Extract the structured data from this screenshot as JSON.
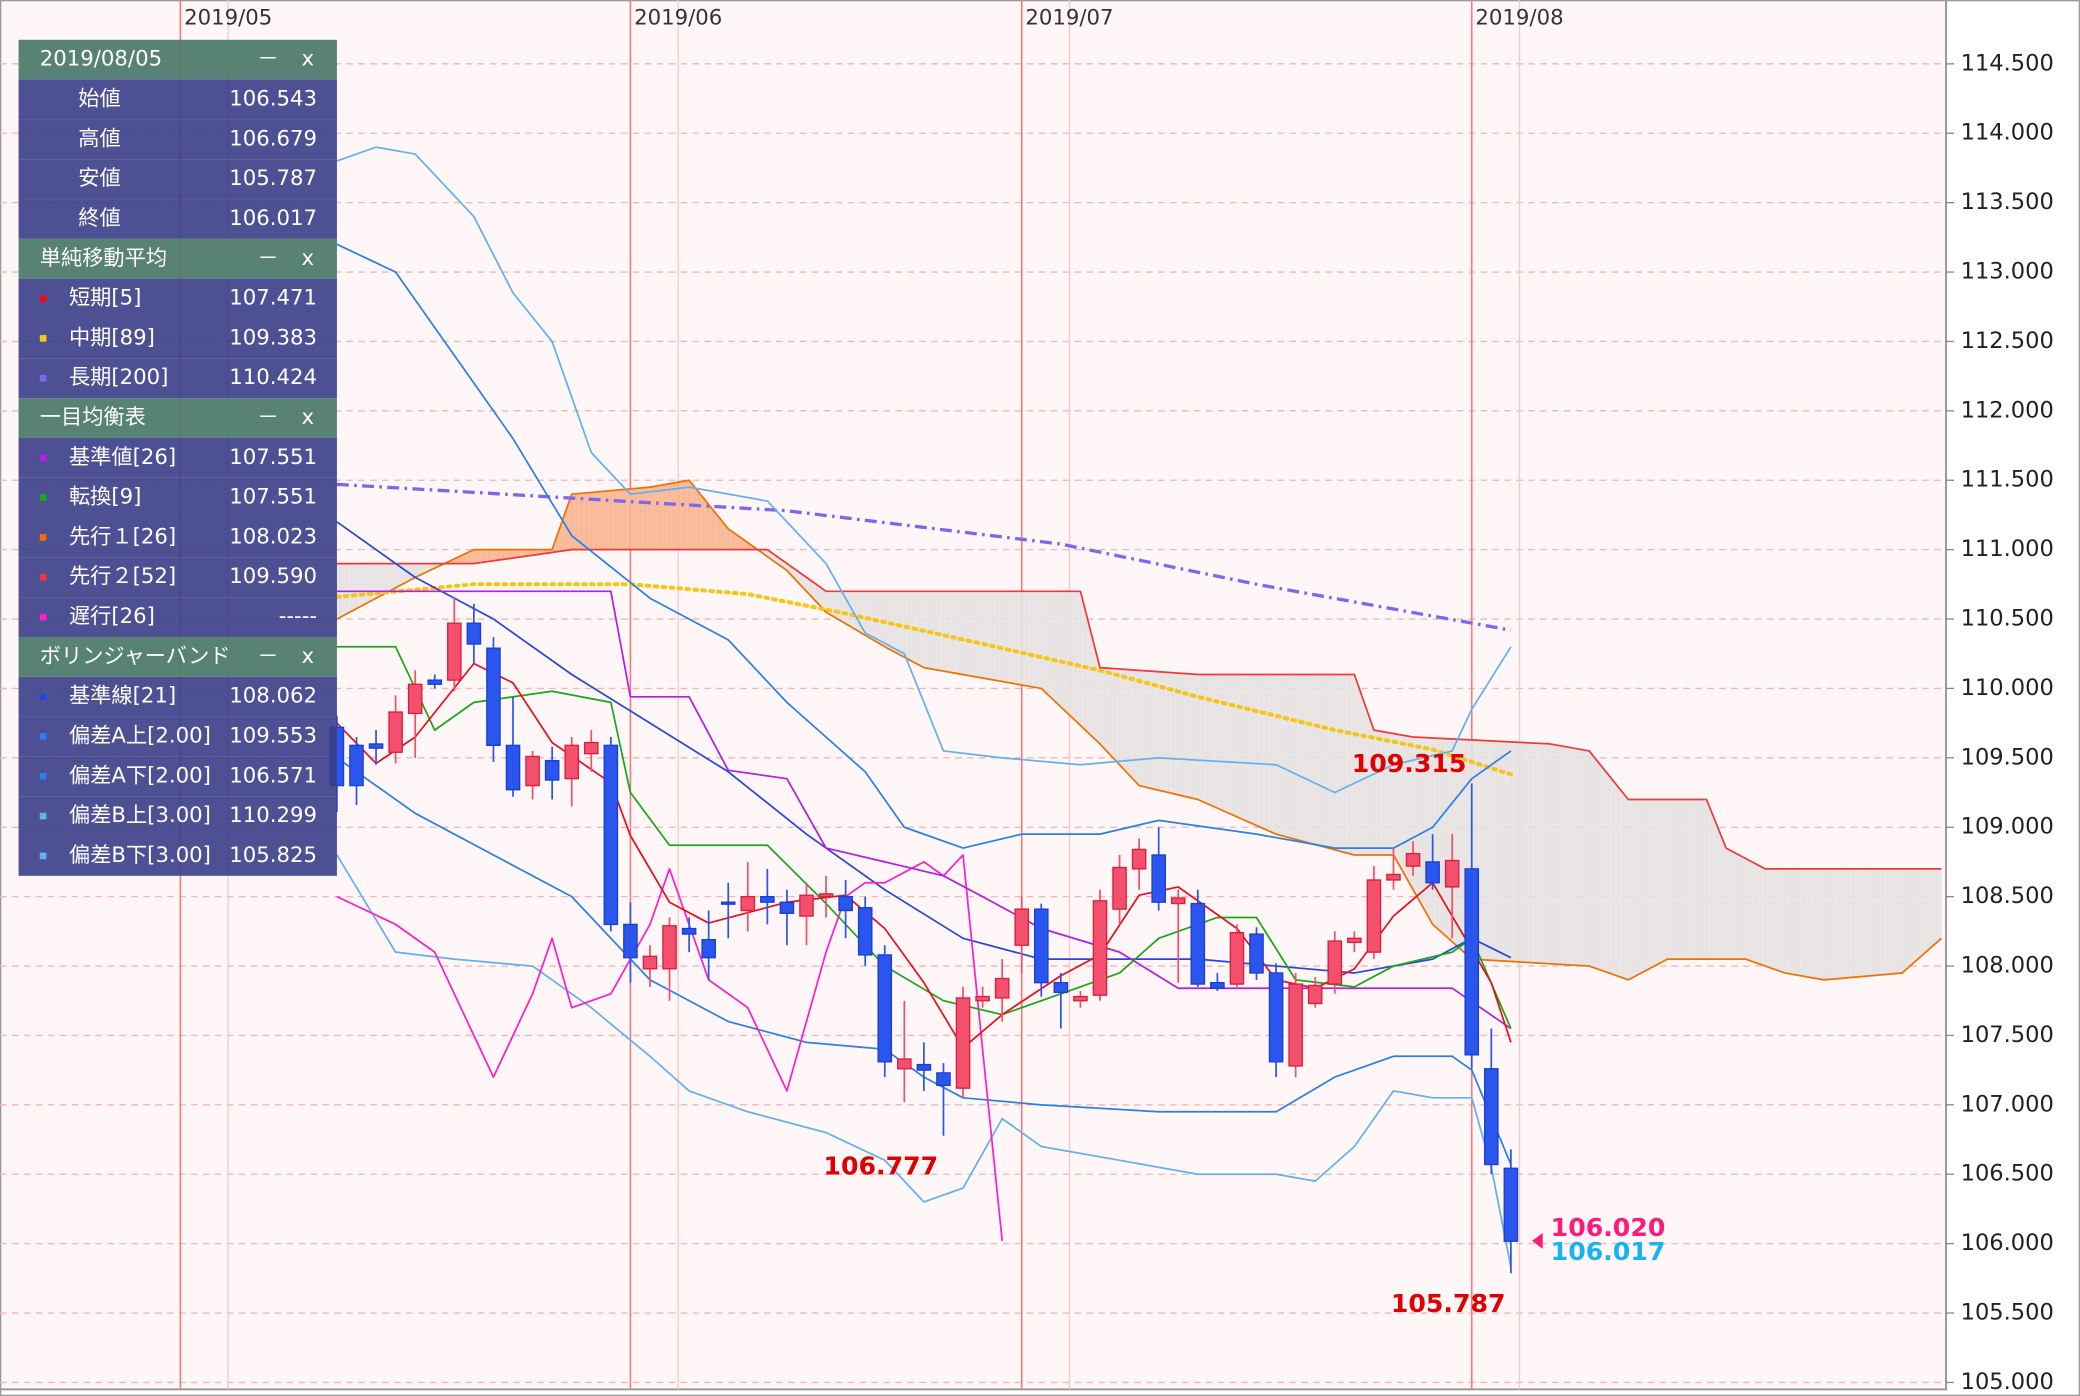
{
  "chart_data": {
    "type": "candlestick",
    "x": [
      8,
      9,
      10,
      11,
      12,
      13,
      14,
      15,
      16,
      17,
      18,
      19,
      20,
      21,
      22,
      23,
      24,
      25,
      26,
      27,
      28,
      29,
      30,
      31,
      32,
      33,
      34,
      35,
      36,
      37,
      38,
      39,
      40,
      41,
      42,
      43,
      44,
      45,
      46,
      47,
      48,
      49,
      50,
      51,
      52,
      53,
      54,
      55,
      56,
      57,
      58,
      59,
      60,
      61,
      62,
      63,
      64,
      65,
      66,
      67,
      68
    ],
    "open": [
      109.72,
      109.59,
      109.6,
      109.54,
      109.82,
      110.06,
      110.06,
      110.47,
      110.29,
      109.59,
      109.3,
      109.48,
      109.35,
      109.53,
      109.59,
      108.3,
      107.98,
      107.98,
      108.27,
      108.19,
      108.46,
      108.4,
      108.5,
      108.46,
      108.36,
      108.5,
      108.5,
      108.42,
      108.08,
      107.26,
      107.29,
      107.23,
      107.12,
      107.75,
      107.77,
      108.15,
      108.41,
      107.88,
      107.75,
      107.79,
      108.41,
      108.7,
      108.8,
      108.45,
      108.45,
      107.88,
      107.87,
      108.23,
      107.95,
      107.28,
      107.73,
      107.87,
      108.17,
      108.1,
      108.62,
      108.72,
      108.75,
      108.57,
      108.7,
      107.26,
      106.543
    ],
    "high": [
      109.8,
      109.65,
      109.7,
      109.95,
      110.13,
      110.1,
      110.66,
      110.61,
      110.37,
      109.94,
      109.55,
      109.58,
      109.65,
      109.7,
      109.65,
      108.46,
      108.15,
      108.35,
      108.35,
      108.4,
      108.6,
      108.75,
      108.7,
      108.55,
      108.6,
      108.65,
      108.62,
      108.5,
      108.15,
      107.75,
      107.45,
      107.3,
      107.85,
      107.85,
      108.05,
      108.5,
      108.45,
      107.95,
      107.82,
      108.55,
      108.8,
      108.92,
      109.0,
      108.55,
      108.55,
      107.95,
      108.3,
      108.28,
      108.02,
      107.95,
      107.92,
      108.25,
      108.25,
      108.72,
      108.85,
      108.9,
      108.95,
      108.95,
      109.315,
      107.55,
      106.679
    ],
    "low": [
      109.11,
      109.16,
      109.45,
      109.46,
      109.5,
      110.0,
      109.98,
      110.18,
      109.47,
      109.22,
      109.2,
      109.2,
      109.15,
      109.4,
      108.25,
      107.88,
      107.85,
      107.75,
      108.1,
      107.9,
      108.2,
      108.25,
      108.3,
      108.15,
      108.15,
      108.35,
      108.2,
      108.0,
      107.2,
      107.02,
      107.1,
      106.777,
      107.05,
      107.7,
      107.6,
      107.95,
      107.78,
      107.55,
      107.7,
      107.75,
      108.3,
      108.55,
      108.4,
      107.88,
      107.85,
      107.82,
      107.85,
      107.9,
      107.2,
      107.2,
      107.7,
      107.8,
      108.1,
      108.05,
      108.55,
      108.65,
      108.55,
      108.2,
      107.26,
      106.5,
      105.787
    ],
    "close": [
      109.3,
      109.3,
      109.57,
      109.83,
      110.03,
      110.03,
      110.47,
      110.32,
      109.59,
      109.27,
      109.51,
      109.34,
      109.59,
      109.61,
      108.3,
      108.06,
      108.07,
      108.29,
      108.23,
      108.06,
      108.45,
      108.5,
      108.46,
      108.38,
      108.51,
      108.52,
      108.4,
      108.08,
      107.31,
      107.33,
      107.25,
      107.14,
      107.77,
      107.78,
      107.91,
      108.41,
      107.88,
      107.81,
      107.78,
      108.47,
      108.71,
      108.84,
      108.46,
      108.49,
      107.87,
      107.84,
      108.24,
      107.95,
      107.31,
      107.87,
      107.86,
      108.18,
      108.2,
      108.62,
      108.66,
      108.81,
      108.6,
      108.76,
      107.36,
      106.57,
      106.017
    ],
    "up_color": "#f2506c",
    "down_color": "#2a56ee",
    "xlim": [
      -9.22,
      90.24
    ],
    "ylim": [
      104.95,
      114.96
    ],
    "xticks": [
      {
        "value": 0,
        "label": "2019/05"
      },
      {
        "value": 23,
        "label": "2019/06"
      },
      {
        "value": 43,
        "label": "2019/07"
      },
      {
        "value": 66,
        "label": "2019/08"
      }
    ],
    "yticks": [
      {
        "value": 114.5,
        "label": "114.500"
      },
      {
        "value": 114,
        "label": "114.000"
      },
      {
        "value": 113.5,
        "label": "113.500"
      },
      {
        "value": 113,
        "label": "113.000"
      },
      {
        "value": 112.5,
        "label": "112.500"
      },
      {
        "value": 112,
        "label": "112.000"
      },
      {
        "value": 111.5,
        "label": "111.500"
      },
      {
        "value": 111,
        "label": "111.000"
      },
      {
        "value": 110.5,
        "label": "110.500"
      },
      {
        "value": 110,
        "label": "110.000"
      },
      {
        "value": 109.5,
        "label": "109.500"
      },
      {
        "value": 109,
        "label": "109.000"
      },
      {
        "value": 108.5,
        "label": "108.500"
      },
      {
        "value": 108,
        "label": "108.000"
      },
      {
        "value": 107.5,
        "label": "107.500"
      },
      {
        "value": 107,
        "label": "107.000"
      },
      {
        "value": 106.5,
        "label": "106.500"
      },
      {
        "value": 106,
        "label": "106.000"
      },
      {
        "value": 105.5,
        "label": "105.500"
      },
      {
        "value": 105,
        "label": "105.000"
      }
    ],
    "grid": true,
    "span_a": {
      "color": "#f07000",
      "x": [
        8,
        12,
        15,
        19,
        20,
        24,
        26,
        28,
        31,
        33,
        36,
        38,
        44,
        47,
        49,
        52,
        56,
        60,
        62,
        64,
        66,
        72,
        74,
        76,
        80,
        82,
        84,
        88,
        90
      ],
      "values": [
        110.5,
        110.8,
        111.0,
        111.0,
        111.4,
        111.45,
        111.5,
        111.15,
        110.85,
        110.55,
        110.3,
        110.15,
        110.0,
        109.6,
        109.3,
        109.2,
        108.95,
        108.8,
        108.8,
        108.3,
        108.05,
        108.0,
        107.9,
        108.05,
        108.05,
        107.95,
        107.9,
        107.95,
        108.2
      ]
    },
    "span_b": {
      "color": "#f03838",
      "x": [
        8,
        15,
        20,
        30,
        32,
        33,
        46,
        47,
        52,
        60,
        61,
        63,
        70,
        72,
        74,
        78,
        79,
        81,
        90
      ],
      "values": [
        110.9,
        110.9,
        111.0,
        111.0,
        110.8,
        110.7,
        110.7,
        110.15,
        110.1,
        110.1,
        109.7,
        109.65,
        109.6,
        109.55,
        109.2,
        109.2,
        108.85,
        108.7,
        108.7
      ]
    },
    "cloud_colors": [
      "#f8b48e",
      "#e6e2e2"
    ],
    "lines": [
      {
        "color": "#7b68ee",
        "style": "dashdot",
        "x": [
          8,
          31,
          45,
          55,
          68
        ],
        "values": [
          111.47,
          111.28,
          111.04,
          110.75,
          110.42
        ]
      },
      {
        "color": "#f5c518",
        "style": "dotted",
        "x": [
          8,
          15,
          23,
          29,
          34,
          42,
          47,
          52,
          59,
          64,
          68
        ],
        "values": [
          110.66,
          110.75,
          110.75,
          110.68,
          110.54,
          110.29,
          110.13,
          109.94,
          109.7,
          109.56,
          109.38
        ]
      },
      {
        "color": "#62b0f0",
        "style": "solid",
        "x": [
          8,
          10,
          12,
          15,
          17,
          19,
          21,
          23,
          26,
          30,
          33,
          35,
          37,
          39,
          42,
          46,
          50,
          56,
          59,
          62,
          65,
          66,
          68
        ],
        "values": [
          113.8,
          113.9,
          113.85,
          113.4,
          112.85,
          112.5,
          111.7,
          111.4,
          111.45,
          111.35,
          110.9,
          110.4,
          110.25,
          109.55,
          109.5,
          109.45,
          109.5,
          109.45,
          109.25,
          109.45,
          109.55,
          109.85,
          110.3
        ]
      },
      {
        "color": "#62b0f0",
        "style": "solid",
        "x": [
          8,
          11,
          14,
          18,
          21,
          24,
          26,
          29,
          33,
          36,
          38,
          40,
          42,
          44,
          48,
          52,
          56,
          58,
          60,
          62,
          64,
          66,
          67,
          68
        ],
        "values": [
          108.8,
          108.1,
          108.05,
          108.0,
          107.7,
          107.35,
          107.1,
          106.95,
          106.8,
          106.6,
          106.3,
          106.4,
          106.9,
          106.7,
          106.6,
          106.5,
          106.5,
          106.45,
          106.7,
          107.1,
          107.05,
          107.05,
          106.55,
          105.83
        ]
      },
      {
        "color": "#2a80e8",
        "style": "solid",
        "x": [
          8,
          11,
          14,
          17,
          20,
          24,
          28,
          31,
          35,
          37,
          40,
          43,
          47,
          50,
          55,
          59,
          62,
          64,
          66,
          68
        ],
        "values": [
          113.2,
          113.0,
          112.4,
          111.8,
          111.1,
          110.65,
          110.35,
          109.9,
          109.4,
          109.0,
          108.85,
          108.95,
          108.95,
          109.05,
          108.95,
          108.85,
          108.85,
          109.0,
          109.35,
          109.55
        ]
      },
      {
        "color": "#2a80e8",
        "style": "solid",
        "x": [
          8,
          12,
          16,
          20,
          24,
          28,
          32,
          36,
          38,
          40,
          44,
          50,
          56,
          59,
          62,
          65,
          66,
          68
        ],
        "values": [
          109.5,
          109.1,
          108.8,
          108.5,
          107.9,
          107.6,
          107.45,
          107.4,
          107.2,
          107.05,
          107.0,
          106.95,
          106.95,
          107.2,
          107.35,
          107.35,
          107.25,
          106.57
        ]
      },
      {
        "color": "#2846e0",
        "style": "solid",
        "x": [
          8,
          12,
          16,
          20,
          24,
          28,
          32,
          36,
          40,
          44,
          48,
          52,
          56,
          60,
          64,
          66,
          68
        ],
        "values": [
          111.2,
          110.8,
          110.5,
          110.1,
          109.75,
          109.4,
          108.95,
          108.55,
          108.2,
          108.05,
          108.05,
          108.05,
          108.0,
          107.95,
          108.05,
          108.2,
          108.06
        ]
      },
      {
        "color": "#ff1ec8",
        "style": "solid",
        "x": [
          8,
          11,
          13,
          16,
          18,
          19,
          20,
          22,
          24,
          25,
          27,
          29,
          31,
          33,
          34,
          35,
          36,
          38,
          39,
          40,
          41,
          42
        ],
        "values": [
          108.5,
          108.3,
          108.1,
          107.2,
          107.8,
          108.2,
          107.7,
          107.8,
          108.3,
          108.7,
          107.9,
          107.7,
          107.1,
          108.1,
          108.5,
          108.6,
          108.6,
          108.75,
          108.65,
          108.8,
          107.4,
          106.02
        ]
      },
      {
        "color": "#b41ee6",
        "style": "solid",
        "x": [
          8,
          22,
          23,
          26,
          28,
          31,
          33,
          36,
          39,
          41,
          44,
          48,
          51,
          65,
          68
        ],
        "values": [
          110.7,
          110.7,
          109.94,
          109.94,
          109.41,
          109.35,
          108.85,
          108.75,
          108.65,
          108.5,
          108.27,
          108.1,
          107.84,
          107.84,
          107.55
        ]
      },
      {
        "color": "#18a818",
        "style": "solid",
        "x": [
          8,
          11,
          13,
          15,
          19,
          22,
          23,
          25,
          30,
          33,
          36,
          39,
          42,
          45,
          48,
          50,
          53,
          55,
          57,
          60,
          62,
          65,
          66,
          68
        ],
        "values": [
          110.3,
          110.3,
          109.7,
          109.9,
          109.98,
          109.9,
          109.25,
          108.87,
          108.87,
          108.45,
          108.0,
          107.75,
          107.65,
          107.8,
          107.95,
          108.2,
          108.35,
          108.35,
          107.9,
          107.85,
          108.0,
          108.1,
          108.2,
          107.55
        ]
      },
      {
        "color": "#e8101c",
        "style": "solid",
        "x": [
          8,
          10,
          12,
          15,
          17,
          19,
          22,
          23,
          25,
          27,
          31,
          34,
          36,
          38,
          40,
          42,
          45,
          47,
          49,
          51,
          54,
          56,
          58,
          60,
          62,
          64,
          65,
          67,
          68
        ],
        "values": [
          109.75,
          109.46,
          109.65,
          110.18,
          110.04,
          109.61,
          109.32,
          108.94,
          108.46,
          108.31,
          108.46,
          108.51,
          108.27,
          107.88,
          107.41,
          107.65,
          107.93,
          108.08,
          108.51,
          108.57,
          108.27,
          107.9,
          107.84,
          107.98,
          108.36,
          108.6,
          108.36,
          107.88,
          107.45
        ]
      }
    ],
    "annotations": [
      {
        "text": "109.315",
        "x": 66,
        "value": 109.315,
        "side": "above",
        "color": "#e00000"
      },
      {
        "text": "106.777",
        "x": 39,
        "value": 106.777,
        "side": "below",
        "color": "#e00000"
      },
      {
        "text": "105.787",
        "x": 68,
        "value": 105.787,
        "side": "below",
        "color": "#e00000"
      }
    ],
    "last_prices": [
      {
        "text": "106.020",
        "value": 106.02,
        "color": "#ff1a7a"
      },
      {
        "text": "106.017",
        "value": 106.017,
        "color": "#18b4f2"
      }
    ]
  },
  "panel": {
    "controls": [
      "－",
      "x"
    ],
    "sections": [
      {
        "title": "2019/08/05",
        "rows": [
          {
            "label": "始値",
            "value": "106.543"
          },
          {
            "label": "高値",
            "value": "106.679"
          },
          {
            "label": "安値",
            "value": "105.787"
          },
          {
            "label": "終値",
            "value": "106.017"
          }
        ]
      },
      {
        "title": "単純移動平均",
        "rows": [
          {
            "label": "短期[5]",
            "value": "107.471",
            "color": "#e8101c"
          },
          {
            "label": "中期[89]",
            "value": "109.383",
            "color": "#f5c518"
          },
          {
            "label": "長期[200]",
            "value": "110.424",
            "color": "#7b68ee"
          }
        ]
      },
      {
        "title": "一目均衡表",
        "rows": [
          {
            "label": "基準値[26]",
            "value": "107.551",
            "color": "#b41ee6"
          },
          {
            "label": "転換[9]",
            "value": "107.551",
            "color": "#18a818"
          },
          {
            "label": "先行１[26]",
            "value": "108.023",
            "color": "#f07000"
          },
          {
            "label": "先行２[52]",
            "value": "109.590",
            "color": "#f03838"
          },
          {
            "label": "遅行[26]",
            "value": "-----",
            "color": "#ff1ec8"
          }
        ]
      },
      {
        "title": "ボリンジャーバンド",
        "rows": [
          {
            "label": "基準線[21]",
            "value": "108.062",
            "color": "#2846e0"
          },
          {
            "label": "偏差A上[2.00]",
            "value": "109.553",
            "color": "#2a80e8"
          },
          {
            "label": "偏差A下[2.00]",
            "value": "106.571",
            "color": "#2a80e8"
          },
          {
            "label": "偏差B上[3.00]",
            "value": "110.299",
            "color": "#62b0f0"
          },
          {
            "label": "偏差B下[3.00]",
            "value": "105.825",
            "color": "#62b0f0"
          }
        ]
      }
    ]
  }
}
